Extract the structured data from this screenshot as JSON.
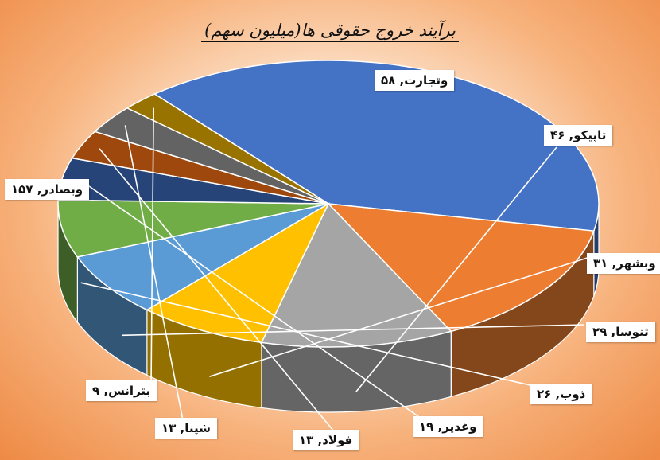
{
  "chart_data": {
    "type": "pie",
    "title": "برآیند خروج حقوقی ها(میلیون سهم)",
    "slices": [
      {
        "label": "وبصادر",
        "value": 157,
        "display": "وبصادر, ۱۵۷",
        "color": "#4472C4"
      },
      {
        "label": "وتجارت",
        "value": 58,
        "display": "وتجارت, ۵۸",
        "color": "#ED7D31"
      },
      {
        "label": "تاپیکو",
        "value": 46,
        "display": "تاپیکو, ۴۶",
        "color": "#A5A5A5"
      },
      {
        "label": "وبشهر",
        "value": 31,
        "display": "وبشهر, ۳۱",
        "color": "#FFC000"
      },
      {
        "label": "ثنوسا",
        "value": 29,
        "display": "ثنوسا, ۲۹",
        "color": "#5B9BD5"
      },
      {
        "label": "ذوب",
        "value": 26,
        "display": "ذوب, ۲۶",
        "color": "#70AD47"
      },
      {
        "label": "وغدیر",
        "value": 19,
        "display": "وغدیر, ۱۹",
        "color": "#264478"
      },
      {
        "label": "فولاد",
        "value": 13,
        "display": "فولاد, ۱۳",
        "color": "#9E480E"
      },
      {
        "label": "شپنا",
        "value": 13,
        "display": "شپنا, ۱۳",
        "color": "#636363"
      },
      {
        "label": "بترانس",
        "value": 9,
        "display": "بترانس, ۹",
        "color": "#997300"
      }
    ]
  }
}
